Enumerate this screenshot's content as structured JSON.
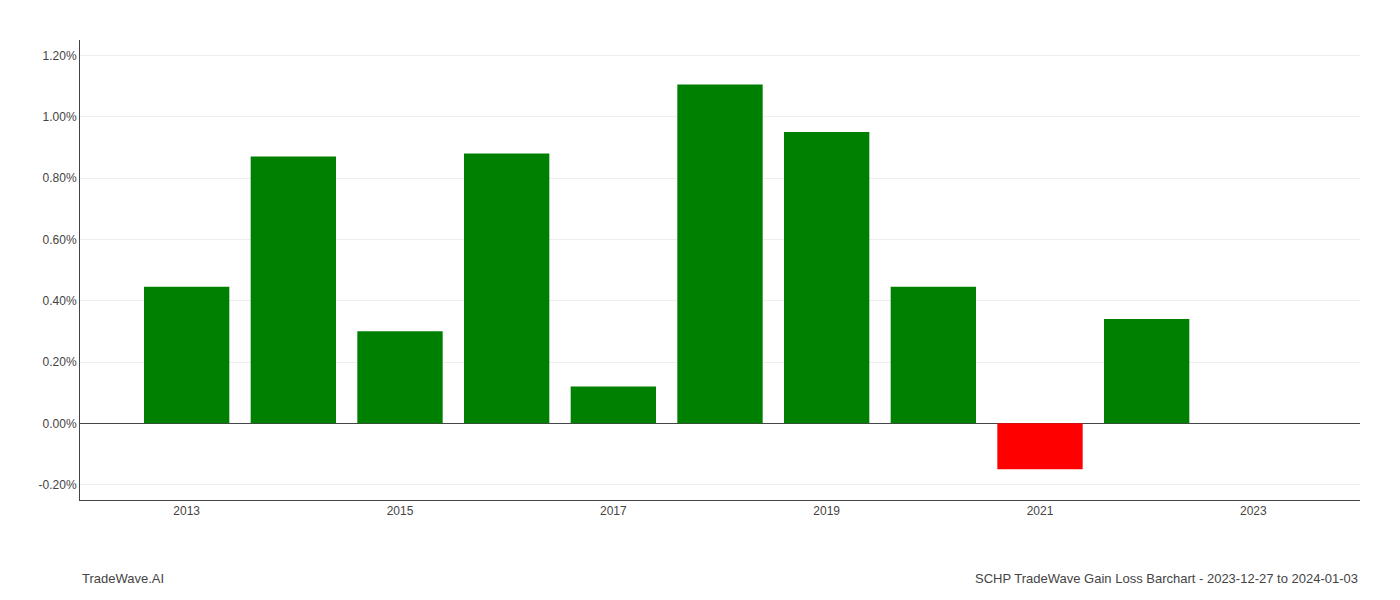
{
  "chart_data": {
    "type": "bar",
    "x": [
      2013,
      2014,
      2015,
      2016,
      2017,
      2018,
      2019,
      2020,
      2021,
      2022
    ],
    "values": [
      0.00445,
      0.0087,
      0.003,
      0.0088,
      0.0012,
      0.01105,
      0.0095,
      0.00445,
      -0.0015,
      0.0034
    ],
    "colors": [
      "#008000",
      "#008000",
      "#008000",
      "#008000",
      "#008000",
      "#008000",
      "#008000",
      "#008000",
      "#ff0000",
      "#008000"
    ],
    "xlim": [
      2012.0,
      2024.0
    ],
    "xticks": [
      2013,
      2015,
      2017,
      2019,
      2021,
      2023
    ],
    "ylim": [
      -0.0025,
      0.0125
    ],
    "yticks": [
      {
        "value": -0.002,
        "label": "-0.20%"
      },
      {
        "value": 0.0,
        "label": "0.00%"
      },
      {
        "value": 0.002,
        "label": "0.20%"
      },
      {
        "value": 0.004,
        "label": "0.40%"
      },
      {
        "value": 0.006,
        "label": "0.60%"
      },
      {
        "value": 0.008,
        "label": "0.80%"
      },
      {
        "value": 0.01,
        "label": "1.00%"
      },
      {
        "value": 0.012,
        "label": "1.20%"
      }
    ],
    "grid": true,
    "annotations": [
      {
        "text": "TradeWave.AI"
      },
      {
        "text": "SCHP TradeWave Gain Loss Barchart - 2023-12-27 to 2024-01-03"
      }
    ]
  }
}
